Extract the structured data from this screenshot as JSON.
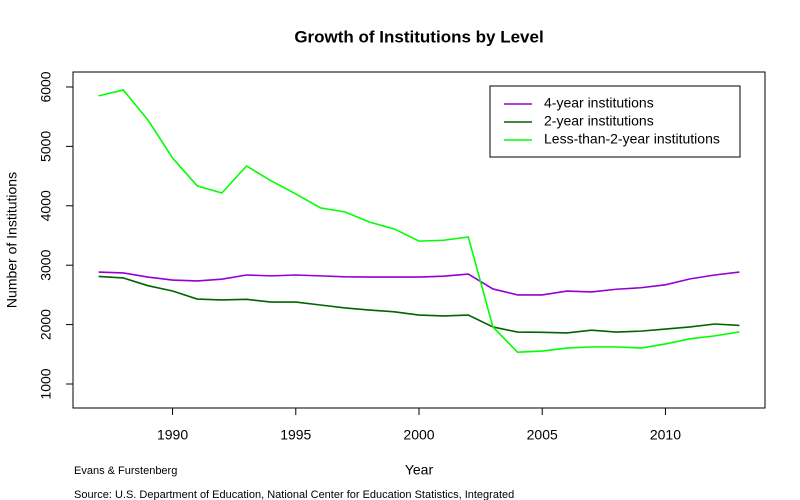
{
  "chart_data": {
    "type": "line",
    "title": "Growth of Institutions by Level",
    "x_label": "Year",
    "y_label": "Number of Institutions",
    "x": [
      1987,
      1988,
      1989,
      1990,
      1991,
      1992,
      1993,
      1994,
      1995,
      1996,
      1997,
      1998,
      1999,
      2000,
      2001,
      2002,
      2003,
      2004,
      2005,
      2006,
      2007,
      2008,
      2009,
      2010,
      2011,
      2012,
      2013
    ],
    "series": [
      {
        "name": "4-year institutions",
        "color": "#9400d3",
        "values": [
          2885,
          2870,
          2800,
          2750,
          2735,
          2765,
          2835,
          2820,
          2835,
          2820,
          2805,
          2800,
          2800,
          2800,
          2815,
          2850,
          2600,
          2500,
          2500,
          2565,
          2550,
          2595,
          2620,
          2670,
          2770,
          2835,
          2885
        ]
      },
      {
        "name": "2-year institutions",
        "color": "#006400",
        "values": [
          2810,
          2785,
          2655,
          2565,
          2430,
          2415,
          2425,
          2380,
          2380,
          2330,
          2280,
          2245,
          2215,
          2160,
          2145,
          2160,
          1960,
          1875,
          1870,
          1860,
          1905,
          1875,
          1890,
          1925,
          1960,
          2010,
          1985
        ]
      },
      {
        "name": "Less-than-2-year institutions",
        "color": "#00ff00",
        "values": [
          5850,
          5950,
          5445,
          4805,
          4335,
          4215,
          4670,
          4420,
          4200,
          3965,
          3895,
          3725,
          3610,
          3405,
          3420,
          3475,
          1960,
          1535,
          1555,
          1605,
          1625,
          1625,
          1605,
          1675,
          1760,
          1810,
          1875
        ]
      }
    ],
    "xlim": [
      1985.96,
      2014.04
    ],
    "xticks": [
      1990,
      1995,
      2000,
      2005,
      2010
    ],
    "ylim": [
      596,
      6252
    ],
    "yticks": [
      1000,
      2000,
      3000,
      4000,
      5000,
      6000
    ],
    "legend_position": "top-right",
    "notes": [
      "Evans & Furstenberg",
      "Source: U.S. Department of Education, National Center for Education Statistics, Integrated"
    ]
  }
}
